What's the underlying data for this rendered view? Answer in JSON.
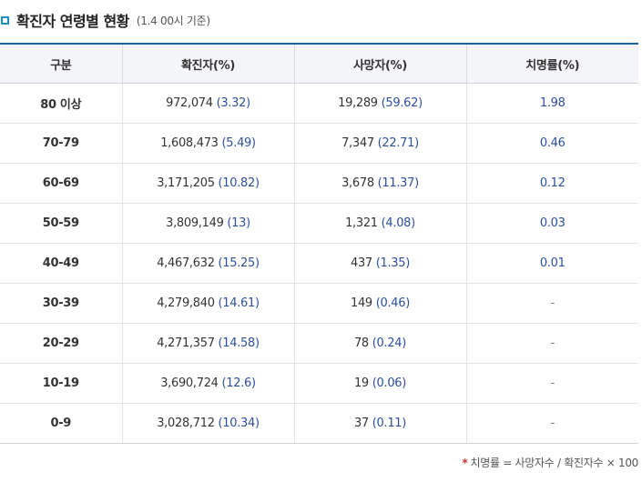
{
  "header": {
    "title": "확진자 연령별 현황",
    "subtitle": "(1.4 00시 기준)"
  },
  "table": {
    "columns": [
      "구분",
      "확진자(%)",
      "사망자(%)",
      "치명률(%)"
    ],
    "rows": [
      {
        "age": "80 이상",
        "cases": "972,074",
        "cases_pct": "(3.32)",
        "deaths": "19,289",
        "deaths_pct": "(59.62)",
        "fatality": "1.98"
      },
      {
        "age": "70-79",
        "cases": "1,608,473",
        "cases_pct": "(5.49)",
        "deaths": "7,347",
        "deaths_pct": "(22.71)",
        "fatality": "0.46"
      },
      {
        "age": "60-69",
        "cases": "3,171,205",
        "cases_pct": "(10.82)",
        "deaths": "3,678",
        "deaths_pct": "(11.37)",
        "fatality": "0.12"
      },
      {
        "age": "50-59",
        "cases": "3,809,149",
        "cases_pct": "(13)",
        "deaths": "1,321",
        "deaths_pct": "(4.08)",
        "fatality": "0.03"
      },
      {
        "age": "40-49",
        "cases": "4,467,632",
        "cases_pct": "(15.25)",
        "deaths": "437",
        "deaths_pct": "(1.35)",
        "fatality": "0.01"
      },
      {
        "age": "30-39",
        "cases": "4,279,840",
        "cases_pct": "(14.61)",
        "deaths": "149",
        "deaths_pct": "(0.46)",
        "fatality": "-"
      },
      {
        "age": "20-29",
        "cases": "4,271,357",
        "cases_pct": "(14.58)",
        "deaths": "78",
        "deaths_pct": "(0.24)",
        "fatality": "-"
      },
      {
        "age": "10-19",
        "cases": "3,690,724",
        "cases_pct": "(12.6)",
        "deaths": "19",
        "deaths_pct": "(0.06)",
        "fatality": "-"
      },
      {
        "age": "0-9",
        "cases": "3,028,712",
        "cases_pct": "(10.34)",
        "deaths": "37",
        "deaths_pct": "(0.11)",
        "fatality": "-"
      }
    ]
  },
  "footnote": {
    "star": "*",
    "text": "치명률 = 사망자수 / 확진자수 × 100"
  },
  "colors": {
    "accent_blue": "#1a5fa8",
    "marker": "#1c8fc2",
    "value_blue": "#2e4f9f",
    "star_red": "#d22f2f"
  }
}
